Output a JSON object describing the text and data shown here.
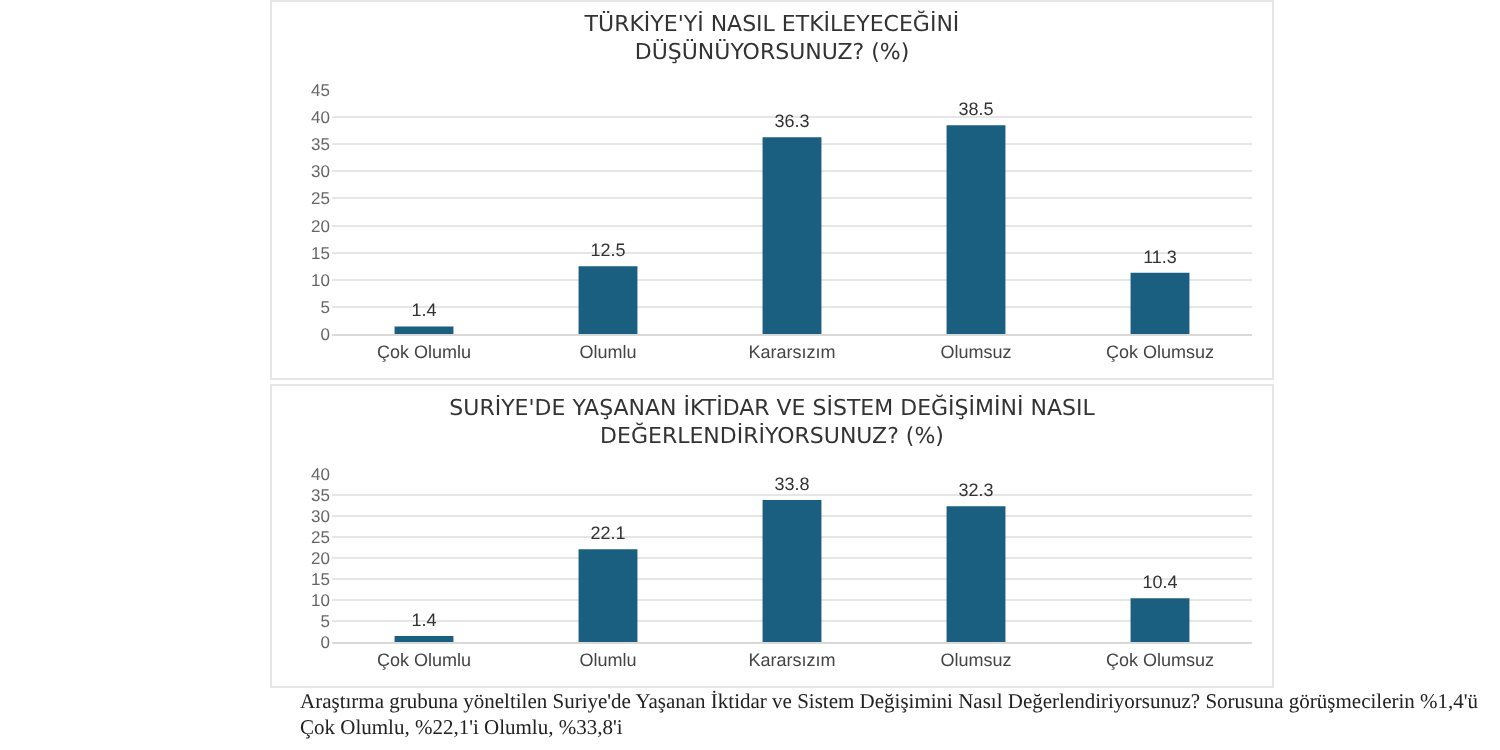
{
  "chart_data": [
    {
      "type": "bar",
      "title": "TÜRKİYE'Yİ NASIL ETKİLEYECEĞİNİ\nDÜŞÜNÜYORSUNUZ? (%)",
      "categories": [
        "Çok Olumlu",
        "Olumlu",
        "Kararsızım",
        "Olumsuz",
        "Çok Olumsuz"
      ],
      "values": [
        1.4,
        12.5,
        36.3,
        38.5,
        11.3
      ],
      "color": "#1a5e80",
      "ylim": [
        0,
        45
      ],
      "yticks": [
        0,
        5,
        10,
        15,
        20,
        25,
        30,
        35,
        40,
        45
      ],
      "grid": "y",
      "data_labels": true
    },
    {
      "type": "bar",
      "title": "SURİYE'DE YAŞANAN İKTİDAR VE SİSTEM DEĞİŞİMİNİ NASIL\nDEĞERLENDİRİYORSUNUZ? (%)",
      "categories": [
        "Çok Olumlu",
        "Olumlu",
        "Kararsızım",
        "Olumsuz",
        "Çok Olumsuz"
      ],
      "values": [
        1.4,
        22.1,
        33.8,
        32.3,
        10.4
      ],
      "color": "#1a5e80",
      "ylim": [
        0,
        40
      ],
      "yticks": [
        0,
        5,
        10,
        15,
        20,
        25,
        30,
        35,
        40
      ],
      "grid": "y",
      "data_labels": true,
      "annotations": [
        "Araştırma grubuna yöneltilen Suriye'de Yaşanan İktidar ve Sistem Değişimini Nasıl Değerlendiriyorsunuz? Sorusuna görüşmecilerin %1,4'ü Çok Olumlu, %22,1'i Olumlu, %33,8'i"
      ]
    }
  ]
}
